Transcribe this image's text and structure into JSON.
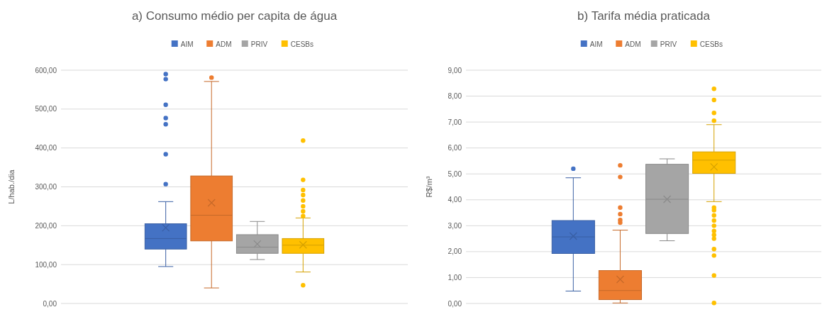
{
  "chart_data": [
    {
      "type": "box",
      "title": "a) Consumo médio per capita de água",
      "ylabel": "L/hab./dia",
      "categories": [
        null
      ],
      "legend": "top",
      "grid": "y",
      "ylim": [
        0,
        600
      ],
      "yticks": [
        {
          "value": 0,
          "label": "0,00"
        },
        {
          "value": 100,
          "label": "100,00"
        },
        {
          "value": 200,
          "label": "200,00"
        },
        {
          "value": 300,
          "label": "300,00"
        },
        {
          "value": 400,
          "label": "400,00"
        },
        {
          "value": 500,
          "label": "500,00"
        },
        {
          "value": 600,
          "label": "600,00"
        }
      ],
      "series": [
        {
          "name": "AIM",
          "color": "#4472c4",
          "boxes": [
            {
              "low": 95,
              "q1": 140,
              "median": 167,
              "q3": 205,
              "high": 262,
              "mean": 195,
              "outliers": [
                307,
                384,
                461,
                477,
                511,
                577,
                590
              ]
            }
          ]
        },
        {
          "name": "ADM",
          "color": "#ed7d31",
          "boxes": [
            {
              "low": 40,
              "q1": 161,
              "median": 227,
              "q3": 328,
              "high": 571,
              "mean": 259,
              "outliers": [
                581
              ]
            }
          ]
        },
        {
          "name": "PRIV",
          "color": "#a5a5a5",
          "boxes": [
            {
              "low": 113,
              "q1": 129,
              "median": 145,
              "q3": 177,
              "high": 211,
              "mean": 153
            }
          ]
        },
        {
          "name": "CESBs",
          "color": "#ffc000",
          "boxes": [
            {
              "low": 81,
              "q1": 129,
              "median": 150,
              "q3": 167,
              "high": 220,
              "mean": 151,
              "outliers": [
                47,
                225,
                237,
                250,
                265,
                279,
                292,
                318,
                419
              ]
            }
          ]
        }
      ]
    },
    {
      "type": "box",
      "title": "b) Tarifa média praticada",
      "ylabel": "R$/m³",
      "categories": [
        null
      ],
      "legend": "top",
      "grid": "y",
      "ylim": [
        0,
        9
      ],
      "yticks": [
        {
          "value": 0,
          "label": "0,00"
        },
        {
          "value": 1,
          "label": "1,00"
        },
        {
          "value": 2,
          "label": "2,00"
        },
        {
          "value": 3,
          "label": "3,00"
        },
        {
          "value": 4,
          "label": "4,00"
        },
        {
          "value": 5,
          "label": "5,00"
        },
        {
          "value": 6,
          "label": "6,00"
        },
        {
          "value": 7,
          "label": "7,00"
        },
        {
          "value": 8,
          "label": "8,00"
        },
        {
          "value": 9,
          "label": "9,00"
        }
      ],
      "series": [
        {
          "name": "AIM",
          "color": "#4472c4",
          "boxes": [
            {
              "low": 0.48,
              "q1": 1.93,
              "median": 2.57,
              "q3": 3.2,
              "high": 4.85,
              "mean": 2.6,
              "outliers": [
                5.2
              ]
            }
          ]
        },
        {
          "name": "ADM",
          "color": "#ed7d31",
          "boxes": [
            {
              "low": 0.02,
              "q1": 0.15,
              "median": 0.5,
              "q3": 1.27,
              "high": 2.83,
              "mean": 0.93,
              "outliers": [
                3.12,
                3.22,
                3.45,
                3.7,
                4.88,
                5.33
              ]
            }
          ]
        },
        {
          "name": "PRIV",
          "color": "#a5a5a5",
          "boxes": [
            {
              "low": 2.42,
              "q1": 2.7,
              "median": 4.02,
              "q3": 5.37,
              "high": 5.58,
              "mean": 4.02
            }
          ]
        },
        {
          "name": "CESBs",
          "color": "#ffc000",
          "boxes": [
            {
              "low": 3.93,
              "q1": 5.02,
              "median": 5.53,
              "q3": 5.85,
              "high": 6.9,
              "mean": 5.27,
              "outliers": [
                0.02,
                1.08,
                1.85,
                2.1,
                2.5,
                2.65,
                2.8,
                3.0,
                3.2,
                3.4,
                3.6,
                3.7,
                7.05,
                7.35,
                7.85,
                8.28
              ]
            }
          ]
        }
      ]
    }
  ]
}
